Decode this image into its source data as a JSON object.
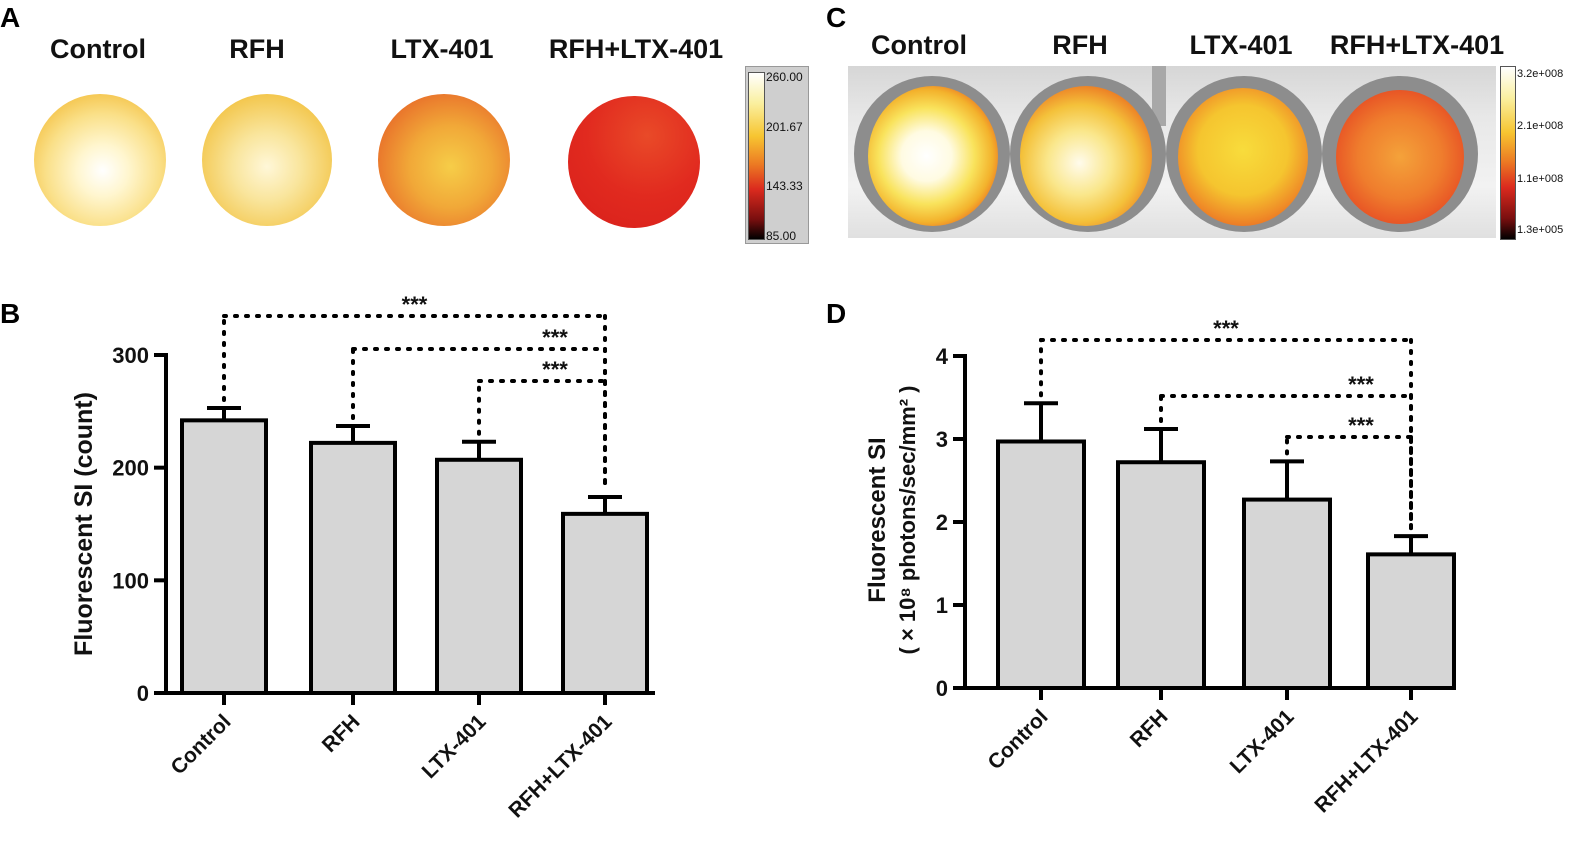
{
  "panels": {
    "a": "A",
    "b": "B",
    "c": "C",
    "d": "D"
  },
  "panel_a": {
    "groups": [
      "Control",
      "RFH",
      "LTX-401",
      "RFH+LTX-401"
    ],
    "colorbar_ticks": [
      "260.00",
      "201.67",
      "143.33",
      "85.00"
    ]
  },
  "panel_c": {
    "groups": [
      "Control",
      "RFH",
      "LTX-401",
      "RFH+LTX-401"
    ],
    "colorbar_ticks": [
      "3.2e+008",
      "2.1e+008",
      "1.1e+008",
      "1.3e+005"
    ]
  },
  "colors": {
    "bar_fill": "#d6d6d6",
    "bar_stroke": "#000000",
    "hot_white": "#fffbe8",
    "hot_yellow": "#f7d23a",
    "hot_red": "#e02a1c"
  },
  "chart_data": [
    {
      "type": "bar",
      "panel": "B",
      "categories": [
        "Control",
        "RFH",
        "LTX-401",
        "RFH+LTX-401"
      ],
      "values": [
        242,
        222,
        207,
        159
      ],
      "errors": [
        11,
        15,
        16,
        15
      ],
      "ylim": [
        0,
        300
      ],
      "yticks": [
        "0",
        "100",
        "200",
        "300"
      ],
      "ylabel": "Fluorescent SI (count)",
      "xlabel": "",
      "significance": [
        {
          "from": 0,
          "to": 3,
          "label": "***"
        },
        {
          "from": 1,
          "to": 3,
          "label": "***"
        },
        {
          "from": 2,
          "to": 3,
          "label": "***"
        }
      ]
    },
    {
      "type": "bar",
      "panel": "D",
      "categories": [
        "Control",
        "RFH",
        "LTX-401",
        "RFH+LTX-401"
      ],
      "values": [
        2.97,
        2.72,
        2.27,
        1.61
      ],
      "errors": [
        0.46,
        0.4,
        0.46,
        0.22
      ],
      "ylim": [
        0,
        4
      ],
      "yticks": [
        "0",
        "1",
        "2",
        "3",
        "4"
      ],
      "ylabel_line1": "Fluorescent SI",
      "ylabel_line2": "( × 10⁸ photons/sec/mm² )",
      "xlabel": "",
      "significance": [
        {
          "from": 0,
          "to": 3,
          "label": "***"
        },
        {
          "from": 1,
          "to": 3,
          "label": "***"
        },
        {
          "from": 2,
          "to": 3,
          "label": "***"
        }
      ]
    }
  ]
}
